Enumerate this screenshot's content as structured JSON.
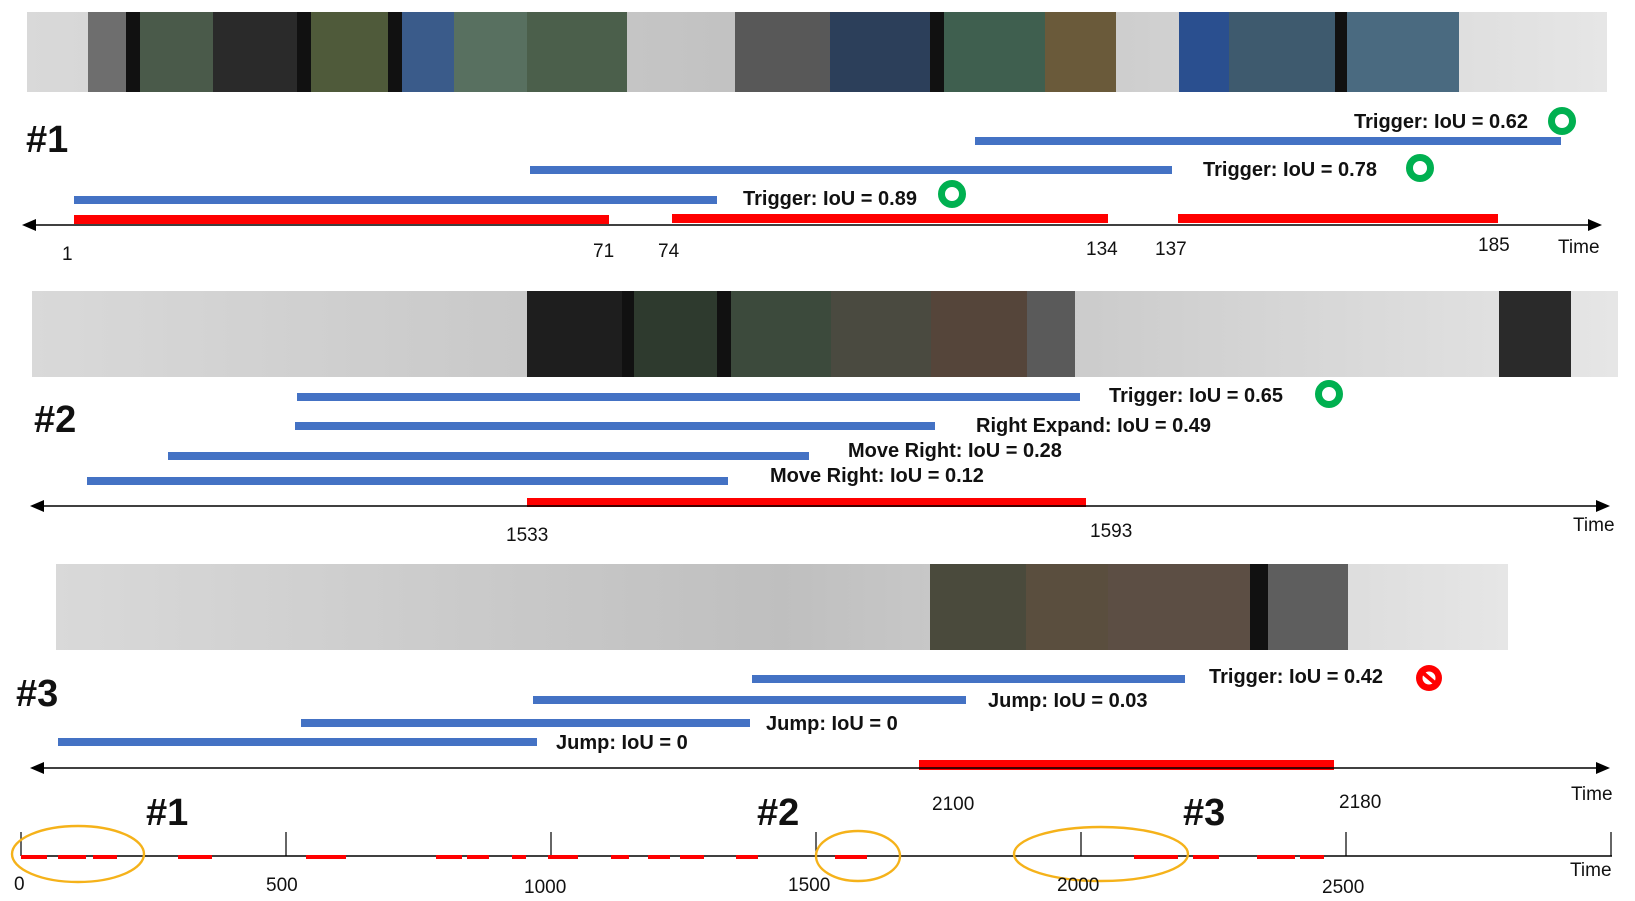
{
  "colors": {
    "prediction": "#4472c4",
    "ground_truth": "#ff0000",
    "ok_badge": "#00b050",
    "fail_badge": "#ff0000",
    "highlight_ellipse": "#f5b21a",
    "axis": "#000000"
  },
  "axis_label": "Time",
  "panels": [
    {
      "label": "#1",
      "ticks": [
        "1",
        "71",
        "74",
        "134",
        "137",
        "185"
      ],
      "predictions": [
        {
          "text": "Trigger: IoU = 0.62",
          "badge": "ok"
        },
        {
          "text": "Trigger: IoU = 0.78",
          "badge": "ok"
        },
        {
          "text": "Trigger: IoU = 0.89",
          "badge": "ok"
        }
      ]
    },
    {
      "label": "#2",
      "ticks": [
        "1533",
        "1593"
      ],
      "predictions": [
        {
          "text": "Trigger: IoU = 0.65",
          "badge": "ok"
        },
        {
          "text": "Right Expand: IoU = 0.49",
          "badge": ""
        },
        {
          "text": "Move Right: IoU = 0.28",
          "badge": ""
        },
        {
          "text": "Move Right: IoU = 0.12",
          "badge": ""
        }
      ]
    },
    {
      "label": "#3",
      "ticks": [
        "2100",
        "2180"
      ],
      "predictions": [
        {
          "text": "Trigger: IoU = 0.42",
          "badge": "fail"
        },
        {
          "text": "Jump: IoU = 0.03",
          "badge": ""
        },
        {
          "text": "Jump: IoU = 0",
          "badge": ""
        },
        {
          "text": "Jump: IoU = 0",
          "badge": ""
        }
      ]
    }
  ],
  "overview": {
    "ticks": [
      "0",
      "500",
      "1000",
      "1500",
      "2000",
      "2500"
    ],
    "highlights": [
      "#1",
      "#2",
      "#3"
    ]
  }
}
